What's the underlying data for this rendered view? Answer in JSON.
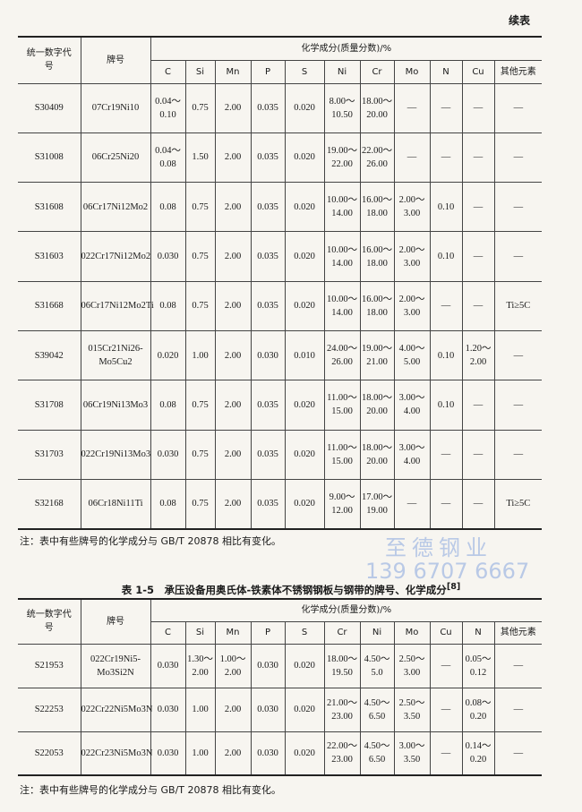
{
  "continued": "续表",
  "watermark": {
    "name": "至德钢业",
    "phone": "139 6707 6667"
  },
  "table1": {
    "head": {
      "code": "统一数字代号",
      "grade": "牌号",
      "composition": "化学成分(质量分数)/%",
      "elements": [
        "C",
        "Si",
        "Mn",
        "P",
        "S",
        "Ni",
        "Cr",
        "Mo",
        "N",
        "Cu",
        "其他元素"
      ]
    },
    "rows": [
      [
        "S30409",
        "07Cr19Ni10",
        [
          "0.04～",
          "0.10"
        ],
        "0.75",
        "2.00",
        "0.035",
        "0.020",
        [
          "8.00～",
          "10.50"
        ],
        [
          "18.00～",
          "20.00"
        ],
        "—",
        "—",
        "—",
        "—"
      ],
      [
        "S31008",
        "06Cr25Ni20",
        [
          "0.04～",
          "0.08"
        ],
        "1.50",
        "2.00",
        "0.035",
        "0.020",
        [
          "19.00～",
          "22.00"
        ],
        [
          "22.00～",
          "26.00"
        ],
        "—",
        "—",
        "—",
        "—"
      ],
      [
        "S31608",
        "06Cr17Ni12Mo2",
        "0.08",
        "0.75",
        "2.00",
        "0.035",
        "0.020",
        [
          "10.00～",
          "14.00"
        ],
        [
          "16.00～",
          "18.00"
        ],
        [
          "2.00～",
          "3.00"
        ],
        "0.10",
        "—",
        "—"
      ],
      [
        "S31603",
        "022Cr17Ni12Mo2",
        "0.030",
        "0.75",
        "2.00",
        "0.035",
        "0.020",
        [
          "10.00～",
          "14.00"
        ],
        [
          "16.00～",
          "18.00"
        ],
        [
          "2.00～",
          "3.00"
        ],
        "0.10",
        "—",
        "—"
      ],
      [
        "S31668",
        "06Cr17Ni12Mo2Ti",
        "0.08",
        "0.75",
        "2.00",
        "0.035",
        "0.020",
        [
          "10.00～",
          "14.00"
        ],
        [
          "16.00～",
          "18.00"
        ],
        [
          "2.00～",
          "3.00"
        ],
        "—",
        "—",
        "Ti≥5C"
      ],
      [
        "S39042",
        [
          "015Cr21Ni26-",
          "Mo5Cu2"
        ],
        "0.020",
        "1.00",
        "2.00",
        "0.030",
        "0.010",
        [
          "24.00～",
          "26.00"
        ],
        [
          "19.00～",
          "21.00"
        ],
        [
          "4.00～",
          "5.00"
        ],
        "0.10",
        [
          "1.20～",
          "2.00"
        ],
        "—"
      ],
      [
        "S31708",
        "06Cr19Ni13Mo3",
        "0.08",
        "0.75",
        "2.00",
        "0.035",
        "0.020",
        [
          "11.00～",
          "15.00"
        ],
        [
          "18.00～",
          "20.00"
        ],
        [
          "3.00～",
          "4.00"
        ],
        "0.10",
        "—",
        "—"
      ],
      [
        "S31703",
        "022Cr19Ni13Mo3",
        "0.030",
        "0.75",
        "2.00",
        "0.035",
        "0.020",
        [
          "11.00～",
          "15.00"
        ],
        [
          "18.00～",
          "20.00"
        ],
        [
          "3.00～",
          "4.00"
        ],
        "—",
        "—",
        "—"
      ],
      [
        "S32168",
        "06Cr18Ni11Ti",
        "0.08",
        "0.75",
        "2.00",
        "0.035",
        "0.020",
        [
          "9.00～",
          "12.00"
        ],
        [
          "17.00～",
          "19.00"
        ],
        "—",
        "—",
        "—",
        "Ti≥5C"
      ]
    ],
    "note": "注：表中有些牌号的化学成分与 GB/T 20878 相比有变化。"
  },
  "table2": {
    "title": "表 1-5　承压设备用奥氏体-铁素体不锈钢钢板与钢带的牌号、化学成分",
    "ref": "[8]",
    "head": {
      "code": "统一数字代号",
      "grade": "牌号",
      "composition": "化学成分(质量分数)/%",
      "elements": [
        "C",
        "Si",
        "Mn",
        "P",
        "S",
        "Cr",
        "Ni",
        "Mo",
        "Cu",
        "N",
        "其他元素"
      ]
    },
    "rows": [
      [
        "S21953",
        [
          "022Cr19Ni5-",
          "Mo3Si2N"
        ],
        "0.030",
        [
          "1.30～",
          "2.00"
        ],
        [
          "1.00～",
          "2.00"
        ],
        "0.030",
        "0.020",
        [
          "18.00～",
          "19.50"
        ],
        [
          "4.50～",
          "5.0"
        ],
        [
          "2.50～",
          "3.00"
        ],
        "—",
        [
          "0.05～",
          "0.12"
        ],
        "—"
      ],
      [
        "S22253",
        "022Cr22Ni5Mo3N",
        "0.030",
        "1.00",
        "2.00",
        "0.030",
        "0.020",
        [
          "21.00～",
          "23.00"
        ],
        [
          "4.50～",
          "6.50"
        ],
        [
          "2.50～",
          "3.50"
        ],
        "—",
        [
          "0.08～",
          "0.20"
        ],
        "—"
      ],
      [
        "S22053",
        "022Cr23Ni5Mo3N",
        "0.030",
        "1.00",
        "2.00",
        "0.030",
        "0.020",
        [
          "22.00～",
          "23.00"
        ],
        [
          "4.50～",
          "6.50"
        ],
        [
          "3.00～",
          "3.50"
        ],
        "—",
        [
          "0.14～",
          "0.20"
        ],
        "—"
      ]
    ],
    "note": "注：表中有些牌号的化学成分与 GB/T 20878 相比有变化。"
  }
}
